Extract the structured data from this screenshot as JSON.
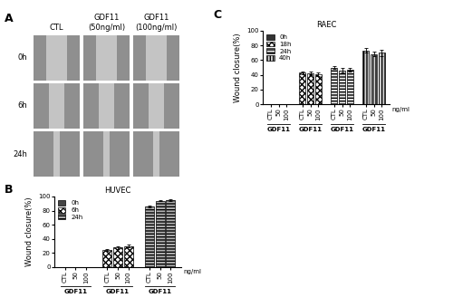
{
  "image_grid": {
    "panel_label": "A",
    "columns": [
      "CTL",
      "GDF11\n(50ng/ml)",
      "GDF11\n(100ng/ml)"
    ],
    "rows": [
      "0h",
      "6h",
      "24h"
    ]
  },
  "chart_data": [
    {
      "type": "bar",
      "panel_label": "B",
      "title": "HUVEC",
      "y_label": "Wound closure(%)",
      "categories": [
        "CTL",
        "50",
        "100"
      ],
      "group_label": "GDF11",
      "unit_label": "ng/ml",
      "ylim": [
        0,
        100
      ],
      "yticks": [
        0,
        20,
        40,
        60,
        80,
        100
      ],
      "legend": "upper left",
      "series": [
        {
          "name": "0h",
          "color": "#444444",
          "values": [
            0,
            0,
            0
          ],
          "errors": [
            0,
            0,
            0
          ]
        },
        {
          "name": "6h",
          "color": "#ffffff",
          "values": [
            24,
            28,
            30
          ],
          "errors": [
            1.5,
            2,
            2
          ]
        },
        {
          "name": "24h",
          "color": "#b0b0b0",
          "values": [
            86,
            94,
            95
          ],
          "errors": [
            1.5,
            1,
            1
          ]
        }
      ]
    },
    {
      "type": "bar",
      "panel_label": "C",
      "title": "RAEC",
      "y_label": "Wound closure(%)",
      "categories": [
        "CTL",
        "50",
        "100"
      ],
      "group_label": "GDF11",
      "unit_label": "ng/ml",
      "ylim": [
        0,
        100
      ],
      "yticks": [
        0,
        20,
        40,
        60,
        80,
        100
      ],
      "legend": "upper left",
      "series": [
        {
          "name": "0h",
          "color": "#333333",
          "values": [
            0,
            0,
            0
          ],
          "errors": [
            0,
            0,
            0
          ]
        },
        {
          "name": "18h",
          "color": "#ffffff",
          "values": [
            43,
            42,
            41
          ],
          "errors": [
            2,
            2,
            2
          ]
        },
        {
          "name": "24h",
          "color": "#e6e6e6",
          "values": [
            50,
            46,
            47
          ],
          "errors": [
            2,
            3,
            2
          ]
        },
        {
          "name": "40h",
          "color": "#cfcfcf",
          "values": [
            73,
            68,
            70
          ],
          "errors": [
            3,
            3,
            4
          ]
        }
      ]
    }
  ]
}
